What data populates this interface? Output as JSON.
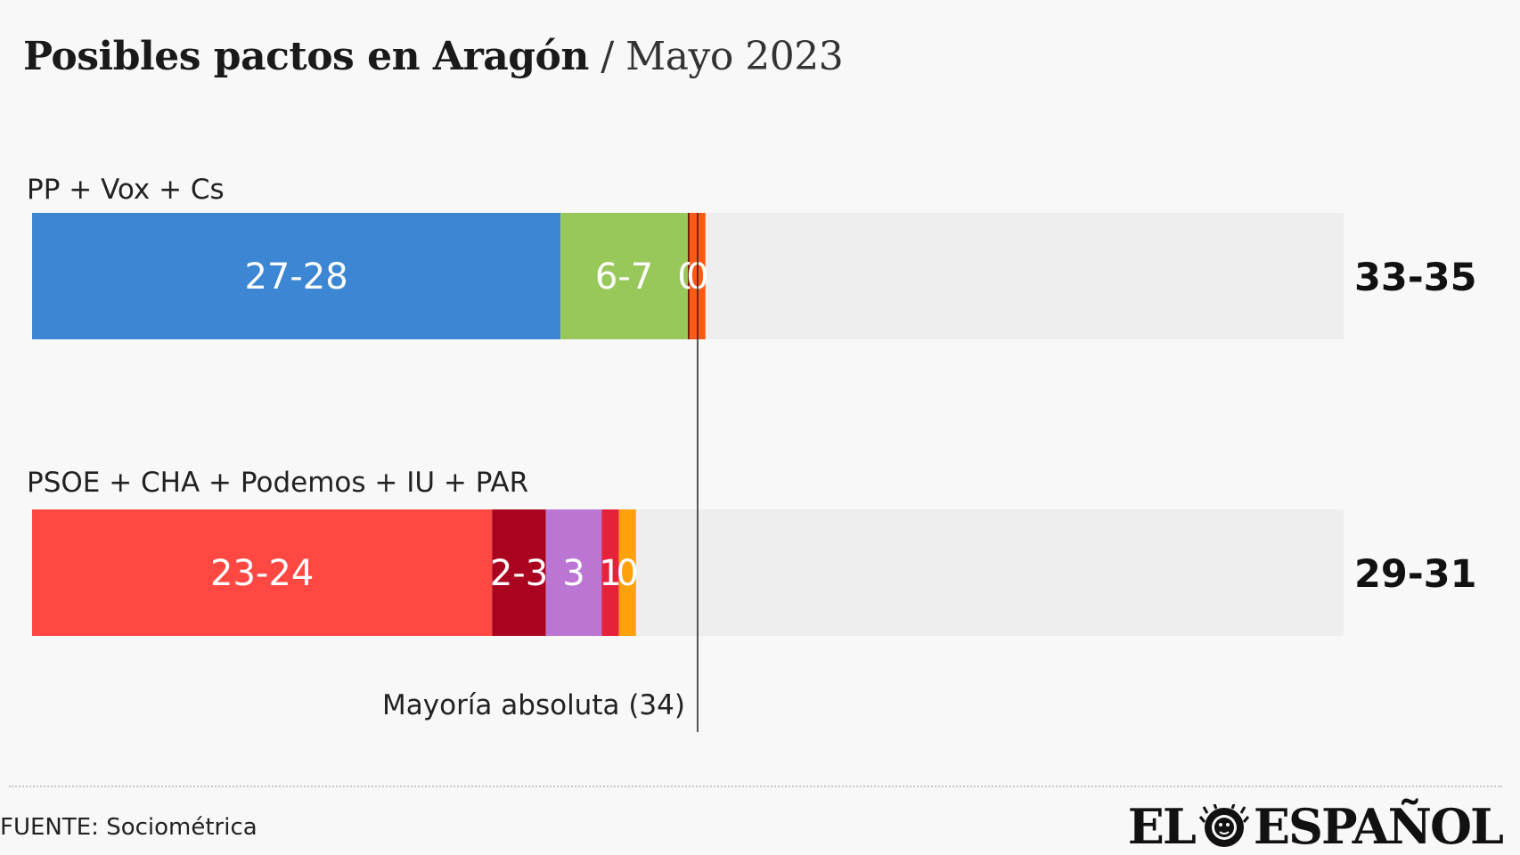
{
  "header": {
    "title": "Posibles pactos en Aragón",
    "separator": " / ",
    "subtitle": "Mayo 2023"
  },
  "chart_data": {
    "type": "bar",
    "orientation": "horizontal",
    "stacked": true,
    "xlim": [
      0,
      67
    ],
    "majority": {
      "value": 34,
      "label": "Mayoría absoluta (34)"
    },
    "groups": [
      {
        "label": "PP + Vox + Cs",
        "total_label": "33-35",
        "segments": [
          {
            "label": "27-28",
            "value": 27,
            "color": "#3c86d3"
          },
          {
            "label": "6-7",
            "value": 6.5,
            "color": "#99c85a"
          },
          {
            "label": "0",
            "value": 0.1,
            "color": "#7a1c00"
          },
          {
            "label": "0",
            "value": 0.8,
            "color": "#ff5a14"
          }
        ]
      },
      {
        "label": "PSOE + CHA + Podemos + IU + PAR",
        "total_label": "29-31",
        "segments": [
          {
            "label": "23-24",
            "value": 23.5,
            "color": "#ff4842"
          },
          {
            "label": "2-3",
            "value": 2.75,
            "color": "#aa0420"
          },
          {
            "label": "3",
            "value": 2.85,
            "color": "#bb76d3"
          },
          {
            "label": "1",
            "value": 0.88,
            "color": "#e6213a"
          },
          {
            "label": "0",
            "value": 0.87,
            "color": "#ffa10b"
          }
        ]
      }
    ],
    "track_color": "#eeeeee"
  },
  "footer": {
    "source": "FUENTE: Sociométrica",
    "logo_text_left": "EL",
    "logo_text_right": "ESPAÑOL",
    "logo_icon": "lion-head-icon"
  }
}
